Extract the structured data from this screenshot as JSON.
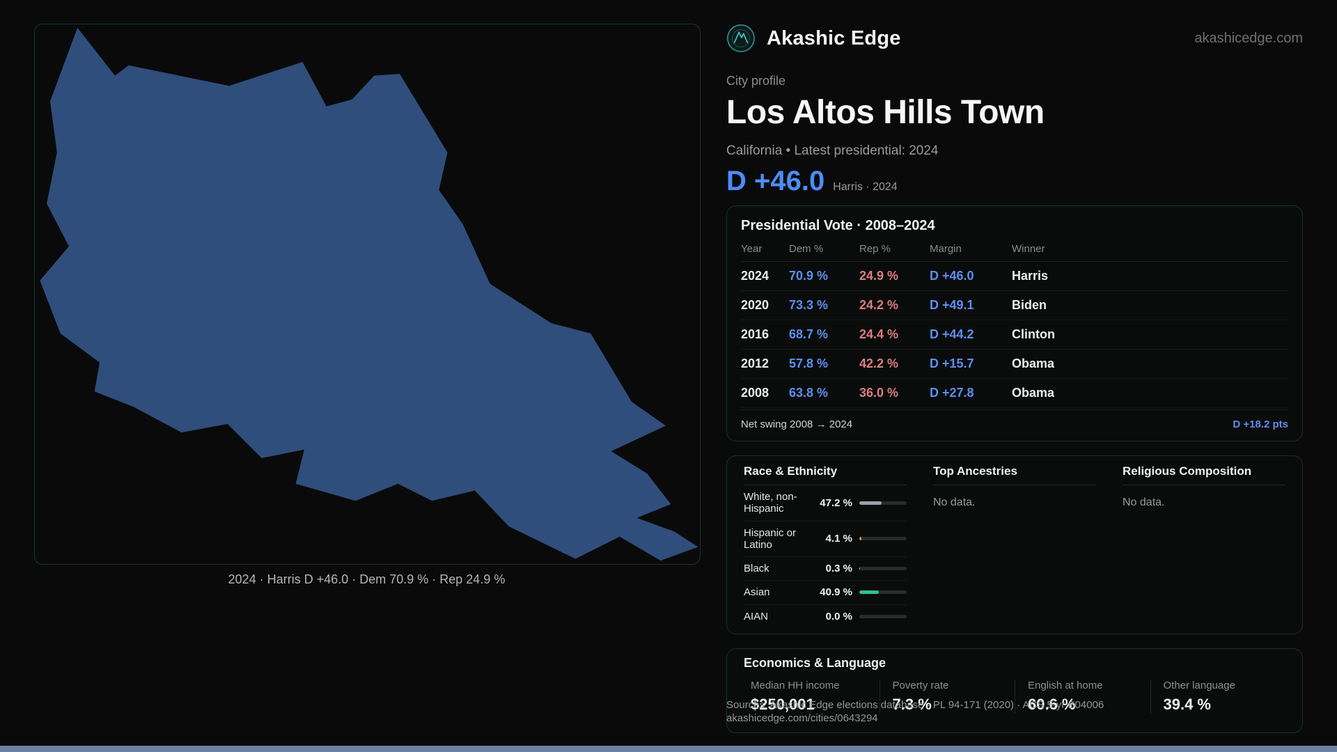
{
  "colors": {
    "dem": "#5d8fee",
    "dem_bright": "#4c8df6",
    "rep": "#de7e7e",
    "map_fill": "#2f4e7c",
    "accent": "#2fbcb4",
    "scrollbar": "#6b80a4"
  },
  "header": {
    "brand": "Akashic Edge",
    "domain": "akashicedge.com"
  },
  "profile": {
    "eyebrow": "City profile",
    "title": "Los Altos Hills Town",
    "subtitle": "California • Latest presidential: 2024",
    "margin_value": "D +46.0",
    "margin_note": "Harris · 2024"
  },
  "map": {
    "caption": "2024 · Harris D +46.0 · Dem 70.9 % · Rep 24.9 %"
  },
  "presidential": {
    "title": "Presidential Vote · 2008–2024",
    "columns": [
      "Year",
      "Dem %",
      "Rep %",
      "Margin",
      "Winner"
    ],
    "rows": [
      {
        "year": "2024",
        "dem": "70.9 %",
        "rep": "24.9 %",
        "margin": "D +46.0",
        "winner": "Harris"
      },
      {
        "year": "2020",
        "dem": "73.3 %",
        "rep": "24.2 %",
        "margin": "D +49.1",
        "winner": "Biden"
      },
      {
        "year": "2016",
        "dem": "68.7 %",
        "rep": "24.4 %",
        "margin": "D +44.2",
        "winner": "Clinton"
      },
      {
        "year": "2012",
        "dem": "57.8 %",
        "rep": "42.2 %",
        "margin": "D +15.7",
        "winner": "Obama"
      },
      {
        "year": "2008",
        "dem": "63.8 %",
        "rep": "36.0 %",
        "margin": "D +27.8",
        "winner": "Obama"
      }
    ],
    "net_swing_label": "Net swing 2008 → 2024",
    "net_swing_value": "D +18.2 pts"
  },
  "demographics": {
    "race": {
      "title": "Race & Ethnicity",
      "rows": [
        {
          "label": "White, non-Hispanic",
          "value": "47.2 %",
          "pct": 47.2,
          "color": "#9aa1ab"
        },
        {
          "label": "Hispanic or Latino",
          "value": "4.1 %",
          "pct": 4.1,
          "color": "#e0933c"
        },
        {
          "label": "Black",
          "value": "0.3 %",
          "pct": 0.3,
          "color": "#9aa1ab"
        },
        {
          "label": "Asian",
          "value": "40.9 %",
          "pct": 40.9,
          "color": "#31c28b"
        },
        {
          "label": "AIAN",
          "value": "0.0 %",
          "pct": 0,
          "color": "#9aa1ab"
        }
      ]
    },
    "ancestries": {
      "title": "Top Ancestries",
      "empty": "No data."
    },
    "religion": {
      "title": "Religious Composition",
      "empty": "No data."
    }
  },
  "economics": {
    "title": "Economics & Language",
    "stats": [
      {
        "label": "Median HH income",
        "value": "$250,001"
      },
      {
        "label": "Poverty rate",
        "value": "7.3 %"
      },
      {
        "label": "English at home",
        "value": "60.6 %"
      },
      {
        "label": "Other language",
        "value": "39.4 %"
      }
    ]
  },
  "footer": {
    "sources": "Sources: Akashic Edge elections database · PL 94-171 (2020) · ACS 5-yr B04006",
    "link": "akashicedge.com/cities/0643294"
  }
}
